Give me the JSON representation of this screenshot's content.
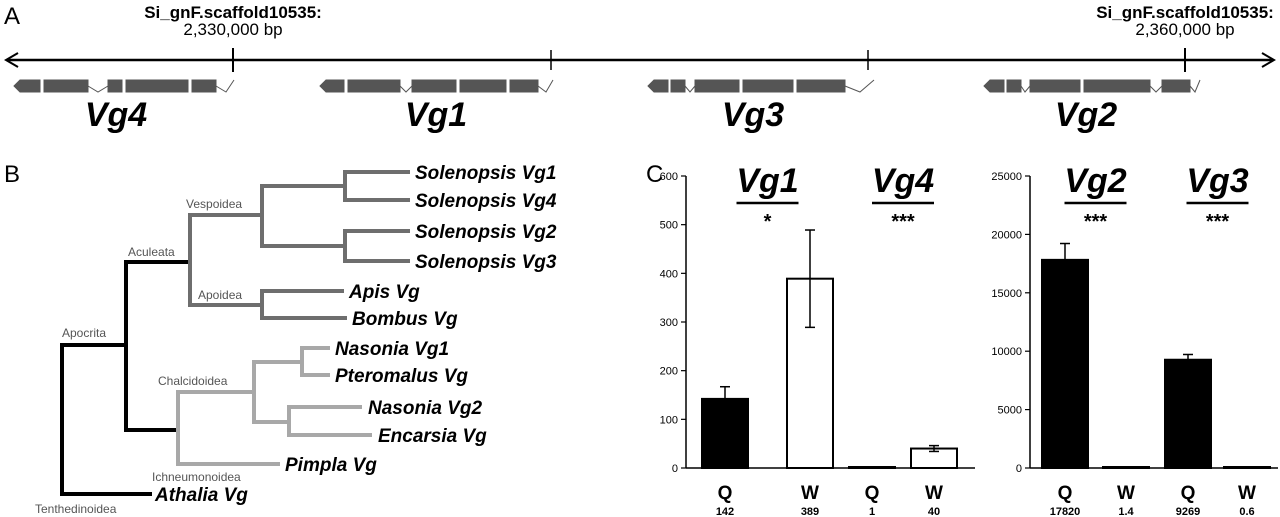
{
  "panel_labels": {
    "a": "A",
    "b": "B",
    "c": "C"
  },
  "genome": {
    "left_marker": {
      "name": "Si_gnF.scaffold10535:",
      "position": "2,330,000 bp"
    },
    "right_marker": {
      "name": "Si_gnF.scaffold10535:",
      "position": "2,360,000 bp"
    },
    "genes": [
      "Vg4",
      "Vg1",
      "Vg3",
      "Vg2"
    ]
  },
  "tree": {
    "taxa": [
      "Solenopsis Vg1",
      "Solenopsis Vg4",
      "Solenopsis Vg2",
      "Solenopsis Vg3",
      "Apis Vg",
      "Bombus Vg",
      "Nasonia Vg1",
      "Pteromalus Vg",
      "Nasonia Vg2",
      "Encarsia Vg",
      "Pimpla Vg",
      "Athalia Vg"
    ],
    "clades": {
      "vespoidea": "Vespoidea",
      "aculeata": "Aculeata",
      "apoidea": "Apoidea",
      "apocrita": "Apocrita",
      "chalcidoidea": "Chalcidoidea",
      "ichneumonoidea": "Ichneumonoidea",
      "tenthedinoidea": "Tenthedinoidea"
    },
    "colors": {
      "aculeata": "#6e6e6e",
      "chalcidoidea": "#a8a8a8",
      "root": "#000000"
    }
  },
  "chart_data": [
    {
      "type": "bar",
      "ylim": [
        0,
        600
      ],
      "yticks": [
        "0",
        "100",
        "200",
        "300",
        "400",
        "500",
        "600"
      ],
      "groups": [
        {
          "gene": "Vg1",
          "significance": "*",
          "categories": [
            "Q",
            "W"
          ],
          "values": [
            142,
            389
          ],
          "labels": [
            "142",
            "389"
          ],
          "errors": [
            25,
            100
          ]
        },
        {
          "gene": "Vg4",
          "significance": "***",
          "categories": [
            "Q",
            "W"
          ],
          "values": [
            1,
            40
          ],
          "labels": [
            "1",
            "40"
          ],
          "errors": [
            0,
            6
          ]
        }
      ]
    },
    {
      "type": "bar",
      "ylim": [
        0,
        25000
      ],
      "yticks": [
        "0",
        "5000",
        "10000",
        "15000",
        "20000",
        "25000"
      ],
      "groups": [
        {
          "gene": "Vg2",
          "significance": "***",
          "categories": [
            "Q",
            "W"
          ],
          "values": [
            17820,
            1.4
          ],
          "labels": [
            "17820",
            "1.4"
          ],
          "errors": [
            1400,
            0
          ]
        },
        {
          "gene": "Vg3",
          "significance": "***",
          "categories": [
            "Q",
            "W"
          ],
          "values": [
            9269,
            0.6
          ],
          "labels": [
            "9269",
            "0.6"
          ],
          "errors": [
            450,
            0
          ]
        }
      ]
    }
  ],
  "bar_colors": {
    "queen": "#000000",
    "worker": "#ffffff"
  }
}
